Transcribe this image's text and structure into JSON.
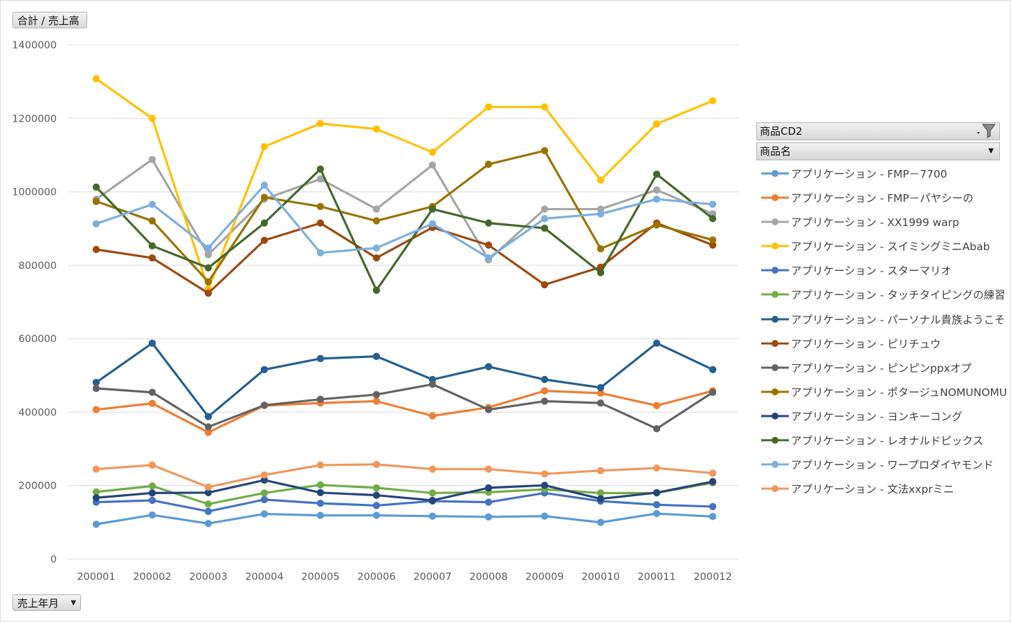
{
  "value_field_button": "合計 / 売上高",
  "axis_field_button": "売上年月",
  "legend_header_1": "商品CD2",
  "legend_header_2": "商品名",
  "chart_data": {
    "type": "line",
    "ylim": [
      0,
      1400000
    ],
    "yticks": [
      0,
      200000,
      400000,
      600000,
      800000,
      1000000,
      1200000,
      1400000
    ],
    "legend_placement": "right",
    "grid": true,
    "categories": [
      "200001",
      "200002",
      "200003",
      "200004",
      "200005",
      "200006",
      "200007",
      "200008",
      "200009",
      "200010",
      "200011",
      "200012"
    ],
    "series": [
      {
        "name": "アプリケーション - FMP－7700",
        "color": "#5B9BD5",
        "values": [
          95000,
          120000,
          97000,
          123000,
          119000,
          119000,
          117000,
          115000,
          117000,
          100000,
          124000,
          116000
        ]
      },
      {
        "name": "アプリケーション - FMP－パヤシーの",
        "color": "#ED7D31",
        "values": [
          407000,
          424000,
          345000,
          418000,
          425000,
          430000,
          390000,
          413000,
          458000,
          452000,
          418000,
          458000
        ]
      },
      {
        "name": "アプリケーション - XX1999 warp",
        "color": "#A5A5A5",
        "values": [
          980000,
          1088000,
          829000,
          980000,
          1035000,
          953000,
          1073000,
          815000,
          953000,
          953000,
          1005000,
          940000
        ]
      },
      {
        "name": "アプリケーション - スイミングミニAbab",
        "color": "#FFC000",
        "values": [
          1308000,
          1200000,
          736000,
          1123000,
          1186000,
          1171000,
          1108000,
          1231000,
          1231000,
          1032000,
          1185000,
          1248000
        ]
      },
      {
        "name": "アプリケーション - スターマリオ",
        "color": "#4472C4",
        "values": [
          155000,
          160000,
          130000,
          162000,
          152000,
          146000,
          158000,
          155000,
          180000,
          158000,
          148000,
          143000
        ]
      },
      {
        "name": "アプリケーション - タッチタイピングの練習",
        "color": "#70AD47",
        "values": [
          183000,
          199000,
          150000,
          180000,
          202000,
          194000,
          180000,
          182000,
          190000,
          180000,
          180000,
          208000
        ]
      },
      {
        "name": "アプリケーション - パーソナル貴族ようこそ",
        "color": "#255E91",
        "values": [
          481000,
          588000,
          388000,
          516000,
          546000,
          552000,
          489000,
          524000,
          489000,
          467000,
          588000,
          516000
        ]
      },
      {
        "name": "アプリケーション - ピリチュウ",
        "color": "#9E480E",
        "values": [
          843000,
          820000,
          724000,
          868000,
          915000,
          820000,
          903000,
          855000,
          747000,
          795000,
          915000,
          855000
        ]
      },
      {
        "name": "アプリケーション - ピンピンppxオプ",
        "color": "#636363",
        "values": [
          465000,
          454000,
          360000,
          419000,
          435000,
          448000,
          476000,
          407000,
          430000,
          425000,
          355000,
          454000
        ]
      },
      {
        "name": "アプリケーション - ポタージュNOMUNOMU",
        "color": "#997300",
        "values": [
          974000,
          921000,
          755000,
          985000,
          960000,
          921000,
          960000,
          1075000,
          1112000,
          845000,
          910000,
          869000
        ]
      },
      {
        "name": "アプリケーション - ヨンキーコング",
        "color": "#264478",
        "values": [
          167000,
          180000,
          181000,
          215000,
          181000,
          174000,
          160000,
          194000,
          201000,
          164000,
          181000,
          211000
        ]
      },
      {
        "name": "アプリケーション - レオナルドピックス",
        "color": "#43682B",
        "values": [
          1013000,
          853000,
          793000,
          915000,
          1062000,
          732000,
          953000,
          915000,
          901000,
          780000,
          1048000,
          927000
        ]
      },
      {
        "name": "アプリケーション - ワープロダイヤモンド",
        "color": "#7CAFDD",
        "values": [
          913000,
          966000,
          847000,
          1018000,
          834000,
          847000,
          913000,
          820000,
          927000,
          940000,
          980000,
          966000
        ]
      },
      {
        "name": "アプリケーション - 文法xxprミニ",
        "color": "#F1975A",
        "values": [
          245000,
          256000,
          196000,
          229000,
          256000,
          258000,
          245000,
          245000,
          232000,
          241000,
          248000,
          234000
        ]
      }
    ]
  }
}
